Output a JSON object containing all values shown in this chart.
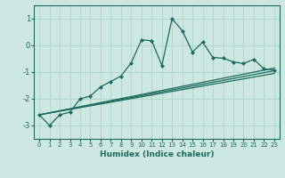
{
  "xlabel": "Humidex (Indice chaleur)",
  "xlim": [
    -0.5,
    23.5
  ],
  "ylim": [
    -3.5,
    1.5
  ],
  "yticks": [
    1,
    0,
    -1,
    -2,
    -3
  ],
  "xticks": [
    0,
    1,
    2,
    3,
    4,
    5,
    6,
    7,
    8,
    9,
    10,
    11,
    12,
    13,
    14,
    15,
    16,
    17,
    18,
    19,
    20,
    21,
    22,
    23
  ],
  "bg_color": "#cce8e0",
  "line_color": "#1a6b5e",
  "grid_color": "#b0d8cc",
  "series_main": {
    "x": [
      0,
      1,
      2,
      3,
      4,
      5,
      6,
      7,
      8,
      9,
      10,
      11,
      12,
      13,
      14,
      15,
      16,
      17,
      18,
      19,
      20,
      21,
      22,
      23
    ],
    "y": [
      -2.6,
      -3.0,
      -2.6,
      -2.5,
      -2.0,
      -1.9,
      -1.55,
      -1.35,
      -1.15,
      -0.65,
      0.2,
      0.18,
      -0.75,
      1.0,
      0.55,
      -0.25,
      0.12,
      -0.45,
      -0.48,
      -0.62,
      -0.68,
      -0.52,
      -0.88,
      -0.92
    ]
  },
  "series_trends": [
    {
      "x": [
        0,
        23
      ],
      "y": [
        -2.6,
        -0.85
      ]
    },
    {
      "x": [
        0,
        23
      ],
      "y": [
        -2.6,
        -0.95
      ]
    },
    {
      "x": [
        0,
        23
      ],
      "y": [
        -2.6,
        -1.05
      ]
    }
  ]
}
